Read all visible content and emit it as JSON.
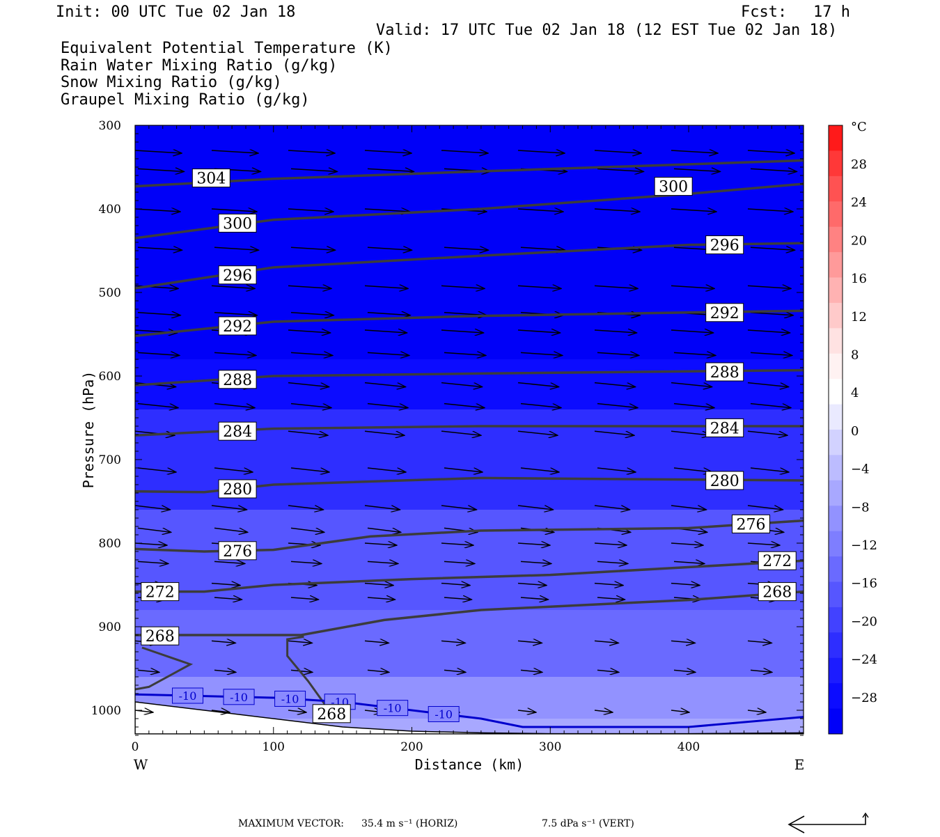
{
  "header": {
    "init": "Init: 00 UTC Tue 02 Jan 18",
    "fcst_label": "Fcst:",
    "fcst_value": "17 h",
    "valid": "Valid: 17 UTC Tue 02 Jan 18 (12 EST Tue 02 Jan 18)"
  },
  "fields": [
    {
      "label": "Equivalent Potential Temperature (K)",
      "color": "#555555"
    },
    {
      "label": "Rain Water Mixing Ratio (g/kg)",
      "color": "#0a7a0a"
    },
    {
      "label": "Snow Mixing Ratio (g/kg)",
      "color": "#f08a50"
    },
    {
      "label": "Graupel Mixing Ratio (g/kg)",
      "color": "#ee7ae8"
    }
  ],
  "footer": {
    "max_vector_label": "MAXIMUM VECTOR:",
    "horiz": "35.4 m s⁻¹ (HORIZ)",
    "vert": "7.5 dPa s⁻¹ (VERT)"
  },
  "chart_data": {
    "type": "heatmap",
    "title": "",
    "xlabel": "Distance (km)",
    "ylabel": "Pressure (hPa)",
    "xlim": [
      0,
      483
    ],
    "ylim": [
      1030,
      300
    ],
    "x_ticks": [
      0,
      100,
      200,
      300,
      400
    ],
    "y_ticks": [
      300,
      400,
      500,
      600,
      700,
      800,
      900,
      1000
    ],
    "x_end_labels": {
      "left": "W",
      "right": "E"
    },
    "colorbar": {
      "unit": "°C",
      "ticks": [
        28,
        24,
        20,
        16,
        12,
        8,
        4,
        0,
        -4,
        -8,
        -12,
        -16,
        -20,
        -24,
        -28
      ],
      "colors": [
        "#ff1a1a",
        "#ff3838",
        "#ff5252",
        "#ff6a6a",
        "#ff8282",
        "#ff9a9a",
        "#ffb2b2",
        "#ffcaca",
        "#ffe2e2",
        "#fff2f2",
        "#ffffff",
        "#eaeaff",
        "#d2d2ff",
        "#bcbcff",
        "#a8a8ff",
        "#9292ff",
        "#7e7eff",
        "#6a6aff",
        "#5656ff",
        "#4242ff",
        "#2e2eff",
        "#1c1cff",
        "#0c0cff",
        "#0000f8"
      ]
    },
    "temperature_bands_celsius": [
      {
        "p": 300,
        "t": -30
      },
      {
        "p": 540,
        "t": -28
      },
      {
        "p": 580,
        "t": -24
      },
      {
        "p": 640,
        "t": -20
      },
      {
        "p": 760,
        "t": -16
      },
      {
        "p": 880,
        "t": -12
      },
      {
        "p": 960,
        "t": -8
      },
      {
        "p": 1010,
        "t": -4
      }
    ],
    "theta_e_contours": [
      {
        "value": 304,
        "x": [
          0,
          100,
          250,
          483
        ],
        "p": [
          373,
          364,
          355,
          342
        ],
        "labels": [
          {
            "x": 55,
            "p": 363
          }
        ]
      },
      {
        "value": 300,
        "x": [
          0,
          100,
          250,
          400,
          483
        ],
        "p": [
          435,
          413,
          400,
          382,
          370
        ],
        "labels": [
          {
            "x": 74,
            "p": 417
          },
          {
            "x": 389,
            "p": 373
          }
        ]
      },
      {
        "value": 296,
        "x": [
          0,
          100,
          250,
          400,
          483
        ],
        "p": [
          495,
          470,
          456,
          443,
          441
        ],
        "labels": [
          {
            "x": 74,
            "p": 479
          },
          {
            "x": 426,
            "p": 443
          }
        ]
      },
      {
        "value": 292,
        "x": [
          0,
          100,
          250,
          400,
          483
        ],
        "p": [
          552,
          535,
          528,
          524,
          522
        ],
        "labels": [
          {
            "x": 74,
            "p": 540
          },
          {
            "x": 426,
            "p": 524
          }
        ]
      },
      {
        "value": 288,
        "x": [
          0,
          100,
          250,
          483
        ],
        "p": [
          611,
          600,
          597,
          593
        ],
        "labels": [
          {
            "x": 74,
            "p": 604
          },
          {
            "x": 426,
            "p": 595
          }
        ]
      },
      {
        "value": 284,
        "x": [
          0,
          100,
          250,
          483
        ],
        "p": [
          671,
          663,
          660,
          660
        ],
        "labels": [
          {
            "x": 74,
            "p": 666
          },
          {
            "x": 426,
            "p": 662
          }
        ]
      },
      {
        "value": 280,
        "x": [
          0,
          50,
          100,
          250,
          483
        ],
        "p": [
          738,
          739,
          730,
          722,
          725
        ],
        "labels": [
          {
            "x": 74,
            "p": 735
          },
          {
            "x": 426,
            "p": 725
          }
        ]
      },
      {
        "value": 276,
        "x": [
          0,
          50,
          100,
          170,
          250,
          400,
          483
        ],
        "p": [
          807,
          810,
          808,
          792,
          785,
          782,
          773
        ],
        "labels": [
          {
            "x": 74,
            "p": 809
          },
          {
            "x": 445,
            "p": 777
          }
        ]
      },
      {
        "value": 272,
        "x": [
          0,
          50,
          100,
          200,
          300,
          483
        ],
        "p": [
          858,
          858,
          850,
          843,
          838,
          821
        ],
        "labels": [
          {
            "x": 18,
            "p": 858
          },
          {
            "x": 464,
            "p": 821
          }
        ]
      },
      {
        "value": 268,
        "x": [
          0,
          120,
          180,
          250,
          400,
          483
        ],
        "p": [
          910,
          910,
          892,
          880,
          868,
          858
        ],
        "labels": [
          {
            "x": 18,
            "p": 911
          },
          {
            "x": 464,
            "p": 858
          },
          {
            "x": 142,
            "p": 1004
          }
        ]
      }
    ],
    "isotherm_minus10": {
      "value": -10,
      "x": [
        0,
        50,
        100,
        150,
        200,
        250,
        280,
        400,
        483
      ],
      "p": [
        981,
        983,
        985,
        990,
        1000,
        1010,
        1020,
        1020,
        1008
      ],
      "labels": [
        38,
        75,
        112,
        148,
        186,
        223
      ]
    },
    "terrain_pressure": {
      "x": [
        0,
        50,
        100,
        150,
        200,
        250,
        300,
        400,
        483
      ],
      "p": [
        990,
        1000,
        1010,
        1020,
        1025,
        1027,
        1028,
        1028,
        1027
      ]
    },
    "wind_rows_hpa": [
      330,
      352,
      400,
      446,
      492,
      524,
      545,
      572,
      608,
      633,
      666,
      710,
      755,
      782,
      800,
      822,
      848,
      865,
      917,
      952,
      1000
    ]
  }
}
